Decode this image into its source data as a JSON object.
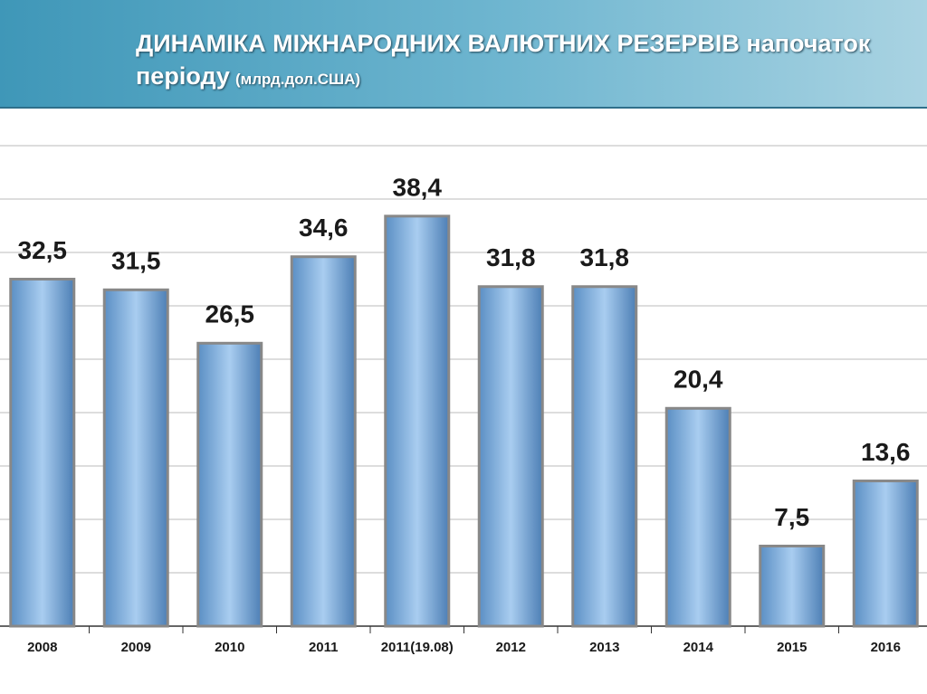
{
  "chart_data": {
    "type": "bar",
    "title": "ДИНАМІКА МІЖНАРОДНИХ ВАЛЮТНИХ РЕЗЕРВІВ напочаток періоду",
    "subtitle": "(млрд.дол.США)",
    "categories": [
      "2008",
      "2009",
      "2010",
      "2011",
      "2011(19.08)",
      "2012",
      "2013",
      "2014",
      "2015",
      "2016"
    ],
    "values": [
      32.5,
      31.5,
      26.5,
      34.6,
      38.4,
      31.8,
      31.8,
      20.4,
      7.5,
      13.6
    ],
    "value_labels": [
      "32,5",
      "31,5",
      "26,5",
      "34,6",
      "38,4",
      "31,8",
      "31,8",
      "20,4",
      "7,5",
      "13,6"
    ],
    "color": "#6fa8dc",
    "ylim": [
      0,
      45
    ],
    "yticks": [
      0,
      5,
      10,
      15,
      20,
      25,
      30,
      35,
      40,
      45
    ],
    "grid": true
  }
}
